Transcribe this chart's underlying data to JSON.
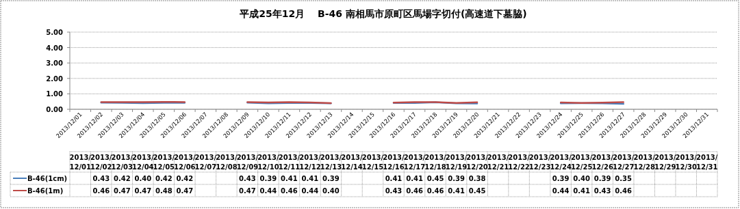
{
  "chart_data": {
    "type": "line",
    "title": "平成25年12月　 B-46 南相馬市原町区馬場字切付(高速道下墓脇)",
    "categories": [
      "2013/12/01",
      "2013/12/02",
      "2013/12/03",
      "2013/12/04",
      "2013/12/05",
      "2013/12/06",
      "2013/12/07",
      "2013/12/08",
      "2013/12/09",
      "2013/12/10",
      "2013/12/11",
      "2013/12/12",
      "2013/12/13",
      "2013/12/14",
      "2013/12/15",
      "2013/12/16",
      "2013/12/17",
      "2013/12/18",
      "2013/12/19",
      "2013/12/20",
      "2013/12/21",
      "2013/12/22",
      "2013/12/23",
      "2013/12/24",
      "2013/12/25",
      "2013/12/26",
      "2013/12/27",
      "2013/12/28",
      "2013/12/29",
      "2013/12/30",
      "2013/12/31"
    ],
    "series": [
      {
        "name": "B-46(1cm)",
        "color": "#4a7ebb",
        "values": [
          null,
          0.43,
          0.42,
          0.4,
          0.42,
          0.42,
          null,
          null,
          0.43,
          0.39,
          0.41,
          0.41,
          0.39,
          null,
          null,
          0.41,
          0.41,
          0.45,
          0.39,
          0.38,
          null,
          null,
          null,
          0.39,
          0.4,
          0.39,
          0.35,
          null,
          null,
          null,
          null
        ],
        "value_labels": [
          null,
          "0.43",
          "0.42",
          "0.40",
          "0.42",
          "0.42",
          null,
          null,
          "0.43",
          "0.39",
          "0.41",
          "0.41",
          "0.39",
          null,
          null,
          "0.41",
          "0.41",
          "0.45",
          "0.39",
          "0.38",
          null,
          null,
          null,
          "0.39",
          "0.40",
          "0.39",
          "0.35",
          null,
          null,
          null,
          null
        ]
      },
      {
        "name": "B-46(1m)",
        "color": "#be4b48",
        "values": [
          null,
          0.46,
          0.47,
          0.47,
          0.48,
          0.47,
          null,
          null,
          0.47,
          0.44,
          0.46,
          0.44,
          0.4,
          null,
          null,
          0.43,
          0.46,
          0.46,
          0.41,
          0.45,
          null,
          null,
          null,
          0.44,
          0.41,
          0.43,
          0.46,
          null,
          null,
          null,
          null
        ],
        "value_labels": [
          null,
          "0.46",
          "0.47",
          "0.47",
          "0.48",
          "0.47",
          null,
          null,
          "0.47",
          "0.44",
          "0.46",
          "0.44",
          "0.40",
          null,
          null,
          "0.43",
          "0.46",
          "0.46",
          "0.41",
          "0.45",
          null,
          null,
          null,
          "0.44",
          "0.41",
          "0.43",
          "0.46",
          null,
          null,
          null,
          null
        ]
      }
    ],
    "ylim": [
      0,
      5
    ],
    "yticks": [
      {
        "value": 0,
        "label": "0.00"
      },
      {
        "value": 1,
        "label": "1.00"
      },
      {
        "value": 2,
        "label": "2.00"
      },
      {
        "value": 3,
        "label": "3.00"
      },
      {
        "value": 4,
        "label": "4.00"
      },
      {
        "value": 5,
        "label": "5.00"
      }
    ],
    "grid": "y",
    "legend": "bottom",
    "marker": "none",
    "line_style": "solid"
  }
}
